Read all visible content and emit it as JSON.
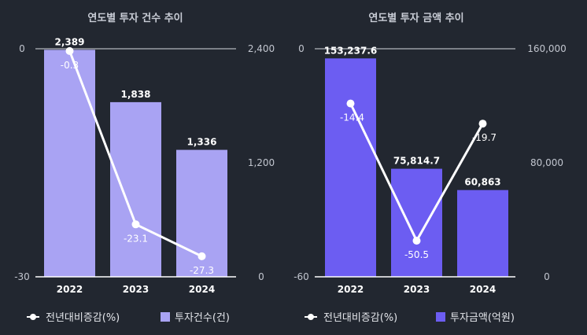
{
  "chart_data": [
    {
      "type": "bar",
      "title": "연도별 투자 건수 추이",
      "categories": [
        "2022",
        "2023",
        "2024"
      ],
      "series": [
        {
          "name": "투자건수(건)",
          "kind": "bar",
          "axis": "right",
          "values": [
            2389,
            1838,
            1336
          ],
          "labels": [
            "2,389",
            "1,838",
            "1,336"
          ],
          "color": "#a9a3f3"
        },
        {
          "name": "전년대비증감(%)",
          "kind": "line",
          "axis": "left",
          "values": [
            -0.3,
            -23.1,
            -27.3
          ],
          "labels": [
            "-0.3",
            "-23.1",
            "-27.3"
          ],
          "color": "#ffffff"
        }
      ],
      "left_axis": {
        "range": [
          -30,
          0
        ],
        "ticks": [
          0,
          -30
        ],
        "tick_labels": [
          "0",
          "-30"
        ]
      },
      "right_axis": {
        "range": [
          0,
          2400
        ],
        "ticks": [
          2400,
          1200,
          0
        ],
        "tick_labels": [
          "2,400",
          "1,200",
          "0"
        ]
      },
      "legend_position": "bottom"
    },
    {
      "type": "bar",
      "title": "연도별 투자 금액 추이",
      "categories": [
        "2022",
        "2023",
        "2024"
      ],
      "series": [
        {
          "name": "투자금액(억원)",
          "kind": "bar",
          "axis": "right",
          "values": [
            153237.6,
            75814.7,
            60863
          ],
          "labels": [
            "153,237.6",
            "75,814.7",
            "60,863"
          ],
          "color": "#6c5df2"
        },
        {
          "name": "전년대비증감(%)",
          "kind": "line",
          "axis": "left",
          "values": [
            -14.4,
            -50.5,
            -19.7
          ],
          "labels": [
            "-14.4",
            "-50.5",
            "-19.7"
          ],
          "color": "#ffffff"
        }
      ],
      "left_axis": {
        "range": [
          -60,
          0
        ],
        "ticks": [
          0,
          -60
        ],
        "tick_labels": [
          "0",
          "-60"
        ]
      },
      "right_axis": {
        "range": [
          0,
          160000
        ],
        "ticks": [
          160000,
          80000,
          0
        ],
        "tick_labels": [
          "160,000",
          "80,000",
          "0"
        ]
      },
      "legend_position": "bottom"
    }
  ]
}
